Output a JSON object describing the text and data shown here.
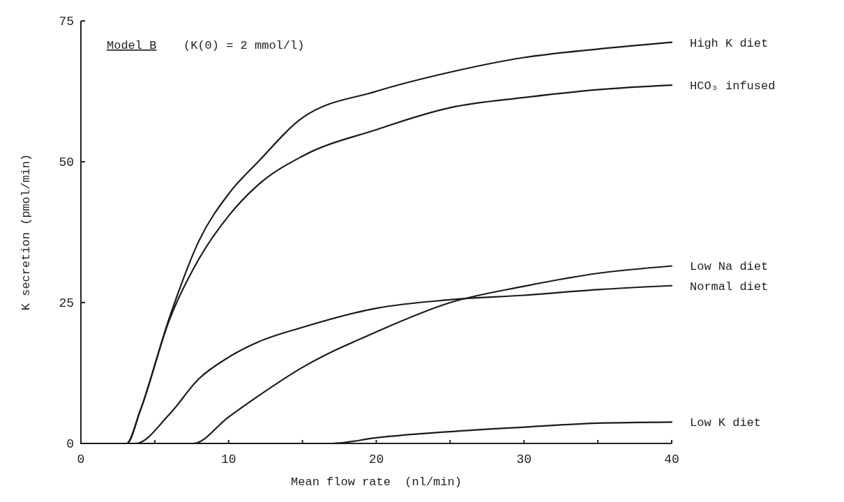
{
  "chart_data": {
    "type": "line",
    "title": "Model B",
    "subtitle": "(K(0) = 2 mmol/l)",
    "xlabel": "Mean flow rate  (nl/min)",
    "ylabel": "K secretion (pmol/min)",
    "xlim": [
      0,
      40
    ],
    "ylim": [
      0,
      75
    ],
    "xticks": [
      0,
      {
        "value": 5,
        "label": null
      },
      10,
      {
        "value": 15,
        "label": null
      },
      20,
      {
        "value": 25,
        "label": null
      },
      30,
      {
        "value": 35,
        "label": null
      },
      40
    ],
    "yticks": [
      0,
      25,
      50,
      75
    ],
    "grid": false,
    "marker": "none",
    "line_style": "solid",
    "series": [
      {
        "name": "High K diet",
        "color": "#1a1a1a",
        "x": [
          0,
          3.1,
          4,
          6,
          8,
          10,
          12,
          15,
          20,
          25,
          30,
          35,
          40
        ],
        "values": [
          0,
          0,
          5.7,
          22.4,
          36,
          44.3,
          50,
          57.8,
          62.5,
          65.9,
          68.5,
          70,
          71.2
        ]
      },
      {
        "name": "HCO₃ infused",
        "color": "#1a1a1a",
        "x": [
          0,
          3.1,
          4,
          6,
          8,
          10,
          12,
          15,
          20,
          25,
          30,
          35,
          40
        ],
        "values": [
          0,
          0,
          5.7,
          22,
          32.8,
          40.4,
          45.9,
          51,
          55.7,
          59.6,
          61.4,
          62.8,
          63.6
        ]
      },
      {
        "name": "Low Na diet",
        "color": "#1a1a1a",
        "x": [
          0,
          7.6,
          10,
          12,
          15,
          20,
          25,
          30,
          35,
          40
        ],
        "values": [
          0,
          0,
          4.7,
          8.4,
          13.5,
          19.8,
          25,
          27.9,
          30.2,
          31.5
        ]
      },
      {
        "name": "Normal diet",
        "color": "#1a1a1a",
        "x": [
          0,
          3.7,
          6,
          8,
          10,
          12,
          15,
          20,
          25,
          30,
          35,
          40
        ],
        "values": [
          0,
          0,
          5.2,
          11.5,
          15.3,
          18,
          20.6,
          24,
          25.5,
          26.3,
          27.3,
          28
        ]
      },
      {
        "name": "Low K diet",
        "color": "#1a1a1a",
        "x": [
          0,
          17,
          20,
          25,
          30,
          35,
          40
        ],
        "values": [
          0,
          0,
          1,
          2.1,
          2.9,
          3.6,
          3.8
        ]
      }
    ]
  }
}
